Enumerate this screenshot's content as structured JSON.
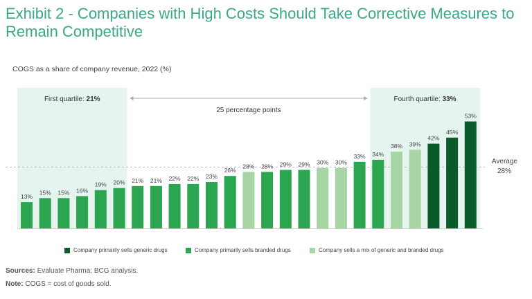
{
  "header": {
    "title": "Exhibit 2 - Companies with High Costs Should Take Corrective Measures to Remain Competitive",
    "subtitle": "COGS as a share of company revenue, 2022 (%)"
  },
  "chart_data": {
    "type": "bar",
    "title": "",
    "xlabel": "",
    "ylabel": "",
    "ylim": [
      0,
      60
    ],
    "grid": false,
    "legend_position": "bottom",
    "categories": [
      "",
      "",
      "",
      "",
      "",
      "",
      "",
      "",
      "",
      "",
      "",
      "",
      "",
      "",
      "",
      "",
      "",
      "",
      "",
      "",
      "",
      "",
      "",
      "",
      ""
    ],
    "values": [
      13,
      15,
      15,
      16,
      19,
      20,
      21,
      21,
      22,
      22,
      23,
      26,
      28,
      28,
      29,
      29,
      30,
      30,
      33,
      34,
      38,
      39,
      42,
      45,
      53
    ],
    "value_labels": [
      "13%",
      "15%",
      "15%",
      "16%",
      "19%",
      "20%",
      "21%",
      "21%",
      "22%",
      "22%",
      "23%",
      "26%",
      "28%",
      "28%",
      "29%",
      "29%",
      "30%",
      "30%",
      "33%",
      "34%",
      "38%",
      "39%",
      "42%",
      "45%",
      "53%"
    ],
    "bar_types": [
      "branded",
      "branded",
      "branded",
      "branded",
      "branded",
      "branded",
      "branded",
      "branded",
      "branded",
      "branded",
      "branded",
      "branded",
      "mix",
      "branded",
      "branded",
      "branded",
      "mix",
      "mix",
      "branded",
      "branded",
      "mix",
      "mix",
      "generic",
      "generic",
      "generic"
    ],
    "colors": {
      "generic": "#0b5a2a",
      "branded": "#2ba550",
      "mix": "#a8d5a4",
      "band": "#e6f4ef",
      "average_line": "#bbbbbb"
    },
    "average": {
      "value": 28,
      "label_line1": "Average",
      "label_line2": "28%"
    },
    "annotations": {
      "first_quartile": {
        "label": "First quartile:",
        "value": "21%"
      },
      "fourth_quartile": {
        "label": "Fourth quartile:",
        "value": "33%"
      },
      "span": "25 percentage points"
    },
    "legend": [
      {
        "key": "generic",
        "label": "Company primarily sells generic drugs"
      },
      {
        "key": "branded",
        "label": "Company primarily sells branded drugs"
      },
      {
        "key": "mix",
        "label": "Company sells a mix of generic and branded drugs"
      }
    ]
  },
  "footnotes": {
    "sources_label": "Sources:",
    "sources_text": "Evaluate Pharma; BCG analysis.",
    "note_label": "Note:",
    "note_text": "COGS = cost of goods sold."
  }
}
